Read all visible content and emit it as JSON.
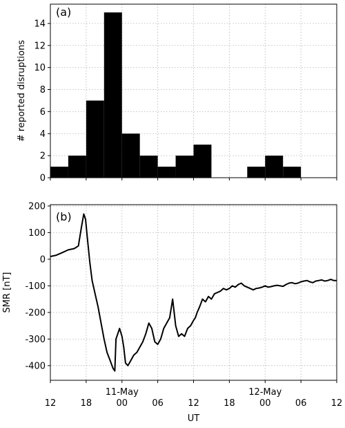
{
  "chart_data": [
    {
      "type": "bar",
      "panel_label": "(a)",
      "ylabel": "# reported disruptions",
      "ylim": [
        0,
        15.75
      ],
      "yticks": [
        0,
        2,
        4,
        6,
        8,
        10,
        12,
        14
      ],
      "xlim_hours": [
        0,
        48
      ],
      "bin_width_hours": 3,
      "grid": true,
      "bars": [
        {
          "start": 0,
          "value": 1
        },
        {
          "start": 3,
          "value": 2
        },
        {
          "start": 6,
          "value": 7
        },
        {
          "start": 9,
          "value": 15
        },
        {
          "start": 12,
          "value": 4
        },
        {
          "start": 15,
          "value": 2
        },
        {
          "start": 18,
          "value": 1
        },
        {
          "start": 21,
          "value": 2
        },
        {
          "start": 24,
          "value": 3
        },
        {
          "start": 27,
          "value": 0
        },
        {
          "start": 30,
          "value": 0
        },
        {
          "start": 33,
          "value": 1
        },
        {
          "start": 36,
          "value": 2
        },
        {
          "start": 39,
          "value": 1
        },
        {
          "start": 42,
          "value": 0
        },
        {
          "start": 45,
          "value": 0
        }
      ]
    },
    {
      "type": "line",
      "panel_label": "(b)",
      "ylabel": "SMR [nT]",
      "xlabel": "UT",
      "ylim": [
        -455,
        205
      ],
      "yticks": [
        -400,
        -300,
        -200,
        -100,
        0,
        100,
        200
      ],
      "xlim_hours": [
        0,
        48
      ],
      "grid": true,
      "series": [
        {
          "x": [
            0,
            1,
            2,
            3,
            4,
            4.7,
            5.2,
            5.6,
            5.9,
            6.2,
            6.6,
            7.0,
            7.5,
            8.0,
            8.5,
            9.0,
            9.5,
            10.0,
            10.5,
            10.8,
            11.0,
            11.3,
            11.6,
            12.0,
            12.3,
            12.6,
            13.0,
            13.5,
            14.0,
            14.5,
            15.0,
            15.5,
            16.0,
            16.5,
            17.0,
            17.5,
            18.0,
            18.5,
            19.0,
            19.5,
            20.0,
            20.5,
            21.0,
            21.5,
            22.0,
            22.5,
            23.0,
            23.5,
            24.0,
            24.3,
            24.6,
            25.0,
            25.5,
            26.0,
            26.5,
            27.0,
            27.5,
            28.0,
            28.5,
            29.0,
            29.5,
            30.0,
            30.5,
            31.0,
            31.5,
            32.0,
            32.5,
            33.0,
            33.5,
            34.0,
            34.5,
            35.0,
            35.5,
            36.0,
            36.5,
            37.0,
            37.5,
            38.0,
            38.5,
            39.0,
            39.5,
            40.0,
            40.5,
            41.0,
            41.5,
            42.0,
            42.5,
            43.0,
            43.5,
            44.0,
            44.5,
            45.0,
            45.5,
            46.0,
            46.5,
            47.0,
            47.5,
            48.0
          ],
          "y": [
            10,
            15,
            25,
            35,
            40,
            50,
            120,
            170,
            150,
            80,
            -10,
            -80,
            -130,
            -180,
            -240,
            -300,
            -350,
            -380,
            -410,
            -420,
            -300,
            -280,
            -260,
            -290,
            -330,
            -390,
            -400,
            -380,
            -360,
            -350,
            -330,
            -310,
            -280,
            -240,
            -260,
            -310,
            -320,
            -300,
            -260,
            -240,
            -220,
            -150,
            -250,
            -290,
            -280,
            -290,
            -260,
            -250,
            -230,
            -220,
            -200,
            -180,
            -150,
            -160,
            -140,
            -150,
            -130,
            -125,
            -120,
            -110,
            -115,
            -110,
            -100,
            -105,
            -95,
            -90,
            -100,
            -105,
            -110,
            -115,
            -110,
            -108,
            -105,
            -100,
            -105,
            -103,
            -100,
            -98,
            -100,
            -102,
            -95,
            -90,
            -88,
            -92,
            -90,
            -85,
            -82,
            -80,
            -85,
            -88,
            -82,
            -80,
            -78,
            -82,
            -80,
            -76,
            -80,
            -80
          ]
        }
      ]
    }
  ],
  "x_tick_labels": [
    "12",
    "18",
    "00",
    "06",
    "12",
    "18",
    "00",
    "06",
    "12"
  ],
  "x_tick_hours": [
    0,
    6,
    12,
    18,
    24,
    30,
    36,
    42,
    48
  ],
  "date_labels": [
    {
      "hour": 12,
      "text": "11-May"
    },
    {
      "hour": 36,
      "text": "12-May"
    }
  ]
}
